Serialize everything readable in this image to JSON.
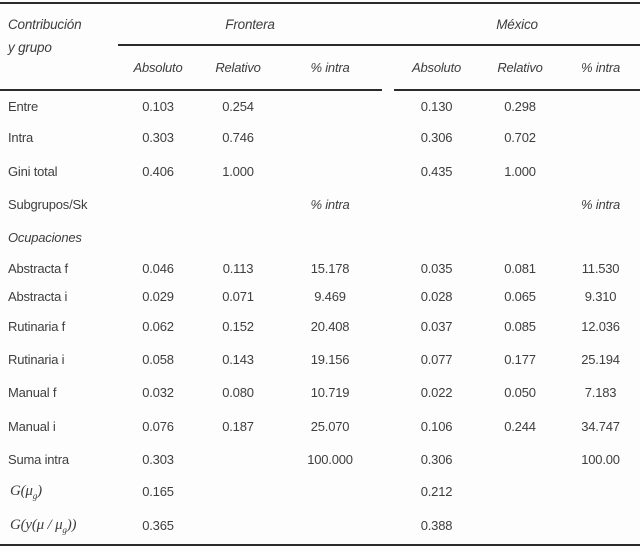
{
  "table": {
    "row_header": {
      "line1": "Contribución",
      "line2": "y grupo"
    },
    "groups": [
      {
        "label": "Frontera",
        "columns": [
          "Absoluto",
          "Relativo",
          "% intra"
        ]
      },
      {
        "label": "México",
        "columns": [
          "Absoluto",
          "Relativo",
          "% intra"
        ]
      }
    ],
    "rows": [
      {
        "label": "Entre",
        "cells": [
          "0.103",
          "0.254",
          "",
          "0.130",
          "0.298",
          ""
        ]
      },
      {
        "label": "Intra",
        "cells": [
          "0.303",
          "0.746",
          "",
          "0.306",
          "0.702",
          ""
        ]
      },
      {
        "label": "Gini total",
        "cells": [
          "0.406",
          "1.000",
          "",
          "0.435",
          "1.000",
          ""
        ]
      },
      {
        "label": "Subgrupos/Sk",
        "cells": [
          "",
          "",
          "% intra",
          "",
          "",
          "% intra"
        ],
        "cells_italic": true
      },
      {
        "label": "Ocupaciones",
        "italic_label": true,
        "cells": [
          "",
          "",
          "",
          "",
          "",
          ""
        ]
      },
      {
        "label": "Abstracta f",
        "cells": [
          "0.046",
          "0.113",
          "15.178",
          "0.035",
          "0.081",
          "11.530"
        ]
      },
      {
        "label": "Abstracta i",
        "cells": [
          "0.029",
          "0.071",
          "9.469",
          "0.028",
          "0.065",
          "9.310"
        ]
      },
      {
        "label": "Rutinaria f",
        "cells": [
          "0.062",
          "0.152",
          "20.408",
          "0.037",
          "0.085",
          "12.036"
        ]
      },
      {
        "label": "Rutinaria i",
        "cells": [
          "0.058",
          "0.143",
          "19.156",
          "0.077",
          "0.177",
          "25.194"
        ]
      },
      {
        "label": "Manual f",
        "cells": [
          "0.032",
          "0.080",
          "10.719",
          "0.022",
          "0.050",
          "7.183"
        ]
      },
      {
        "label": "Manual i",
        "cells": [
          "0.076",
          "0.187",
          "25.070",
          "0.106",
          "0.244",
          "34.747"
        ]
      },
      {
        "label": "Suma intra",
        "cells": [
          "0.303",
          "",
          "100.000",
          "0.306",
          "",
          "100.00"
        ]
      },
      {
        "math": {
          "pre": "G(μ",
          "sub": "g",
          "post": ")"
        },
        "cells": [
          "0.165",
          "",
          "",
          "0.212",
          "",
          ""
        ]
      },
      {
        "math": {
          "pre": "G(y(μ / μ",
          "sub": "g",
          "post": "))"
        },
        "cells": [
          "0.365",
          "",
          "",
          "0.388",
          "",
          ""
        ]
      }
    ],
    "colors": {
      "text": "#3e3e3e",
      "rule": "#2b2b2b",
      "background": "#fdfdfd"
    }
  }
}
